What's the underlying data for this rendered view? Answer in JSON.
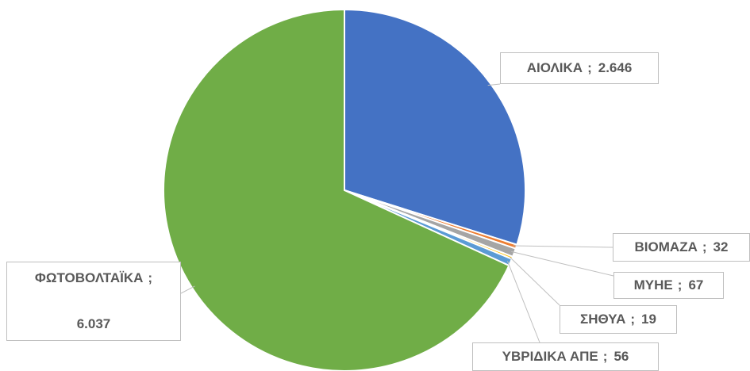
{
  "chart_data": {
    "type": "pie",
    "categories": [
      "ΑΙΟΛΙΚΑ",
      "ΒΙΟΜΑΖΑ",
      "ΜΥΗΕ",
      "ΣΗΘΥΑ",
      "ΥΒΡΙΔΙΚΑ ΑΠΕ",
      "ΦΩΤΟΒΟΛΤΑΪΚΑ"
    ],
    "values": [
      2646,
      32,
      67,
      19,
      56,
      6037
    ],
    "value_labels": [
      "2.646",
      "32",
      "67",
      "19",
      "56",
      "6.037"
    ],
    "label_separator": ";",
    "colors": [
      "#4472c4",
      "#ed7d31",
      "#a5a5a5",
      "#ffc000",
      "#5b9bd5",
      "#70ad47"
    ]
  }
}
